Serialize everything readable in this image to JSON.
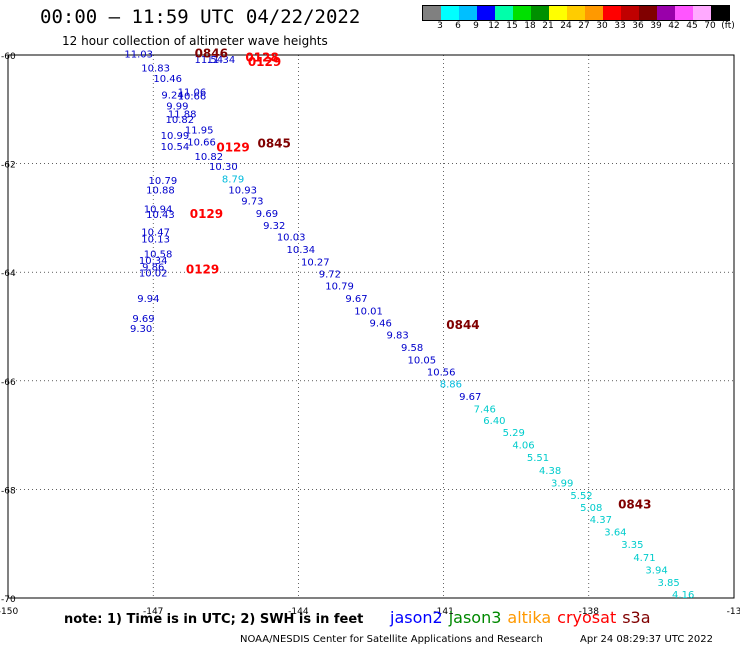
{
  "header": {
    "title": "00:00 – 11:59 UTC 04/22/2022",
    "subtitle": "12 hour collection of altimeter wave heights"
  },
  "legend": {
    "unit": "(ft)",
    "colors": [
      "#808080",
      "#00ffff",
      "#00bfff",
      "#0000ff",
      "#00ffaa",
      "#00e000",
      "#009000",
      "#ffff00",
      "#ffcc00",
      "#ff9900",
      "#ff0000",
      "#c00000",
      "#800000",
      "#9900aa",
      "#ff55ff",
      "#ffaaff",
      "#000000"
    ],
    "labels": [
      "3",
      "6",
      "9",
      "12",
      "15",
      "18",
      "21",
      "24",
      "27",
      "30",
      "33",
      "36",
      "39",
      "42",
      "45",
      "70",
      "(ft)"
    ]
  },
  "map": {
    "lat_ticks": [
      "-60",
      "-62",
      "-64",
      "-66",
      "-68",
      "-70"
    ],
    "lon_ticks": [
      "-150",
      "-147",
      "-144",
      "-141",
      "-138",
      "-13"
    ],
    "observations": [
      {
        "lon": -147.3,
        "lat": -60.05,
        "v": "11.03",
        "sat": "jason2"
      },
      {
        "lon": -146.95,
        "lat": -60.3,
        "v": "10.83",
        "sat": "jason2"
      },
      {
        "lon": -146.7,
        "lat": -60.5,
        "v": "10.46",
        "sat": "jason2"
      },
      {
        "lon": -146.2,
        "lat": -60.75,
        "v": "11.06",
        "sat": "jason2"
      },
      {
        "lon": -146.6,
        "lat": -60.8,
        "v": "9.24",
        "sat": "jason2"
      },
      {
        "lon": -146.2,
        "lat": -60.82,
        "v": "10.66",
        "sat": "jason2"
      },
      {
        "lon": -146.5,
        "lat": -61.0,
        "v": "9.99",
        "sat": "jason2"
      },
      {
        "lon": -146.4,
        "lat": -61.15,
        "v": "11.88",
        "sat": "jason2"
      },
      {
        "lon": -146.45,
        "lat": -61.25,
        "v": "10.82",
        "sat": "jason2"
      },
      {
        "lon": -146.05,
        "lat": -61.45,
        "v": "11.95",
        "sat": "jason2"
      },
      {
        "lon": -146.55,
        "lat": -61.55,
        "v": "10.99",
        "sat": "jason2"
      },
      {
        "lon": -146.0,
        "lat": -61.67,
        "v": "10.66",
        "sat": "jason2"
      },
      {
        "lon": -146.55,
        "lat": -61.75,
        "v": "10.54",
        "sat": "jason2"
      },
      {
        "lon": -145.85,
        "lat": -61.93,
        "v": "10.82",
        "sat": "jason2"
      },
      {
        "lon": -145.55,
        "lat": -62.12,
        "v": "10.30",
        "sat": "jason2"
      },
      {
        "lon": -145.35,
        "lat": -62.35,
        "v": "8.79",
        "sat": "jason2_light"
      },
      {
        "lon": -145.15,
        "lat": -62.55,
        "v": "10.93",
        "sat": "jason2"
      },
      {
        "lon": -144.95,
        "lat": -62.75,
        "v": "9.73",
        "sat": "jason2"
      },
      {
        "lon": -144.65,
        "lat": -62.98,
        "v": "9.69",
        "sat": "jason2"
      },
      {
        "lon": -144.5,
        "lat": -63.2,
        "v": "9.32",
        "sat": "jason2"
      },
      {
        "lon": -144.15,
        "lat": -63.42,
        "v": "10.03",
        "sat": "jason2"
      },
      {
        "lon": -143.95,
        "lat": -63.65,
        "v": "10.34",
        "sat": "jason2"
      },
      {
        "lon": -143.65,
        "lat": -63.88,
        "v": "10.27",
        "sat": "jason2"
      },
      {
        "lon": -143.35,
        "lat": -64.1,
        "v": "9.72",
        "sat": "jason2"
      },
      {
        "lon": -143.15,
        "lat": -64.32,
        "v": "10.79",
        "sat": "jason2"
      },
      {
        "lon": -142.8,
        "lat": -64.55,
        "v": "9.67",
        "sat": "jason2"
      },
      {
        "lon": -142.55,
        "lat": -64.78,
        "v": "10.01",
        "sat": "jason2"
      },
      {
        "lon": -142.3,
        "lat": -65.0,
        "v": "9.46",
        "sat": "jason2"
      },
      {
        "lon": -141.95,
        "lat": -65.22,
        "v": "9.83",
        "sat": "jason2"
      },
      {
        "lon": -141.65,
        "lat": -65.45,
        "v": "9.58",
        "sat": "jason2"
      },
      {
        "lon": -141.45,
        "lat": -65.68,
        "v": "10.05",
        "sat": "jason2"
      },
      {
        "lon": -141.05,
        "lat": -65.9,
        "v": "10.56",
        "sat": "jason2"
      },
      {
        "lon": -140.85,
        "lat": -66.12,
        "v": "8.86",
        "sat": "jason2_light"
      },
      {
        "lon": -140.45,
        "lat": -66.35,
        "v": "9.67",
        "sat": "jason2"
      },
      {
        "lon": -140.15,
        "lat": -66.58,
        "v": "7.46",
        "sat": "light"
      },
      {
        "lon": -139.95,
        "lat": -66.8,
        "v": "6.40",
        "sat": "light"
      },
      {
        "lon": -139.55,
        "lat": -67.02,
        "v": "5.29",
        "sat": "light"
      },
      {
        "lon": -139.35,
        "lat": -67.25,
        "v": "4.06",
        "sat": "light"
      },
      {
        "lon": -139.05,
        "lat": -67.48,
        "v": "5.51",
        "sat": "light"
      },
      {
        "lon": -138.8,
        "lat": -67.72,
        "v": "4.38",
        "sat": "light"
      },
      {
        "lon": -138.55,
        "lat": -67.95,
        "v": "3.99",
        "sat": "light"
      },
      {
        "lon": -138.15,
        "lat": -68.18,
        "v": "5.52",
        "sat": "light"
      },
      {
        "lon": -137.95,
        "lat": -68.4,
        "v": "5.08",
        "sat": "light"
      },
      {
        "lon": -137.75,
        "lat": -68.62,
        "v": "4.37",
        "sat": "light"
      },
      {
        "lon": -137.45,
        "lat": -68.85,
        "v": "3.64",
        "sat": "light"
      },
      {
        "lon": -137.1,
        "lat": -69.08,
        "v": "3.35",
        "sat": "light"
      },
      {
        "lon": -136.85,
        "lat": -69.32,
        "v": "4.71",
        "sat": "light"
      },
      {
        "lon": -136.6,
        "lat": -69.55,
        "v": "3.94",
        "sat": "light"
      },
      {
        "lon": -136.35,
        "lat": -69.78,
        "v": "3.85",
        "sat": "light"
      },
      {
        "lon": -136.05,
        "lat": -70.0,
        "v": "4.16",
        "sat": "light"
      },
      {
        "lon": -146.8,
        "lat": -62.38,
        "v": "10.79",
        "sat": "jason2"
      },
      {
        "lon": -146.85,
        "lat": -62.55,
        "v": "10.88",
        "sat": "jason2"
      },
      {
        "lon": -146.9,
        "lat": -62.9,
        "v": "10.94",
        "sat": "jason2"
      },
      {
        "lon": -146.85,
        "lat": -63.0,
        "v": "10.43",
        "sat": "jason2"
      },
      {
        "lon": -146.95,
        "lat": -63.32,
        "v": "10.47",
        "sat": "jason2"
      },
      {
        "lon": -146.95,
        "lat": -63.45,
        "v": "10.13",
        "sat": "jason2"
      },
      {
        "lon": -146.9,
        "lat": -63.73,
        "v": "10.58",
        "sat": "jason2"
      },
      {
        "lon": -147.0,
        "lat": -63.85,
        "v": "10.34",
        "sat": "jason2"
      },
      {
        "lon": -147.0,
        "lat": -63.97,
        "v": "9.86",
        "sat": "jason2"
      },
      {
        "lon": -147.0,
        "lat": -64.08,
        "v": "10.02",
        "sat": "jason2"
      },
      {
        "lon": -147.1,
        "lat": -64.55,
        "v": "9.94",
        "sat": "jason2"
      },
      {
        "lon": -147.2,
        "lat": -64.92,
        "v": "9.69",
        "sat": "jason2"
      },
      {
        "lon": -147.25,
        "lat": -65.1,
        "v": "9.30",
        "sat": "jason2"
      },
      {
        "lon": -145.6,
        "lat": -60.15,
        "v": "11.34",
        "sat": "jason2"
      },
      {
        "lon": -145.85,
        "lat": -60.15,
        "v": "11.54",
        "sat": "jason2"
      }
    ],
    "times": [
      {
        "lon": -145.8,
        "lat": -60.05,
        "t": "0846",
        "color": "#800000"
      },
      {
        "lon": -144.75,
        "lat": -60.12,
        "t": "0128",
        "color": "#ff0000"
      },
      {
        "lon": -144.7,
        "lat": -60.2,
        "t": "0129",
        "color": "#ff0000"
      },
      {
        "lon": -145.35,
        "lat": -61.78,
        "t": "0129",
        "color": "#ff0000"
      },
      {
        "lon": -144.5,
        "lat": -61.7,
        "t": "0845",
        "color": "#800000"
      },
      {
        "lon": -145.9,
        "lat": -63.0,
        "t": "0129",
        "color": "#ff0000"
      },
      {
        "lon": -145.98,
        "lat": -64.02,
        "t": "0129",
        "color": "#ff0000"
      },
      {
        "lon": -140.6,
        "lat": -65.05,
        "t": "0844",
        "color": "#800000"
      },
      {
        "lon": -137.05,
        "lat": -68.35,
        "t": "0843",
        "color": "#800000"
      }
    ]
  },
  "note": "note:  1) Time is in UTC;  2) SWH is in feet",
  "satellites": [
    {
      "name": "jason2",
      "color": "#0000ff"
    },
    {
      "name": "jason3",
      "color": "#008800"
    },
    {
      "name": "altika",
      "color": "#ff9900"
    },
    {
      "name": "cryosat",
      "color": "#ff0000"
    },
    {
      "name": "s3a",
      "color": "#800000"
    }
  ],
  "footer": {
    "credit": "NOAA/NESDIS Center for Satellite Applications and Research",
    "timestamp": "Apr 24 08:29:37 UTC 2022"
  }
}
